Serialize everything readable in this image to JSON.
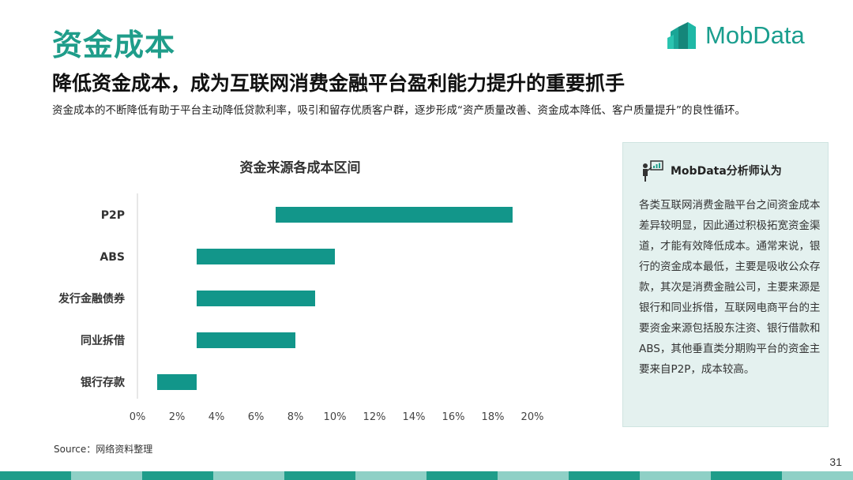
{
  "page": {
    "title": "资金成本",
    "subtitle": "降低资金成本，成为互联网消费金融平台盈利能力提升的重要抓手",
    "description": "资金成本的不断降低有助于平台主动降低贷款利率，吸引和留存优质客户群，逐步形成“资产质量改善、资金成本降低、客户质量提升”的良性循环。",
    "source": "Source：网络资料整理",
    "page_number": "31"
  },
  "logo": {
    "text": "MobData",
    "color": "#1a9e8e"
  },
  "analyst_panel": {
    "title": "MobData分析师认为",
    "icon": "presenter-chart-icon",
    "body": "各类互联网消费金融平台之间资金成本差异较明显，因此通过积极拓宽资金渠道，才能有效降低成本。通常来说，银行的资金成本最低，主要是吸收公众存款，其次是消费金融公司，主要来源是银行和同业拆借，互联网电商平台的主要资金来源包括股东注资、银行借款和ABS，其他垂直类分期购平台的资金主要来自P2P，成本较高。"
  },
  "colors": {
    "accent": "#1f9d8a",
    "bar": "#12968a",
    "panel_bg": "#e4f1ef"
  },
  "chart_data": {
    "type": "bar",
    "orientation": "horizontal",
    "title": "资金来源各成本区间",
    "categories": [
      "P2P",
      "ABS",
      "发行金融债券",
      "同业拆借",
      "银行存款"
    ],
    "ranges": [
      [
        7,
        19
      ],
      [
        3,
        10
      ],
      [
        3,
        9
      ],
      [
        3,
        8
      ],
      [
        1,
        3
      ]
    ],
    "unit": "%",
    "xlim": [
      0,
      20
    ],
    "xticks": [
      0,
      2,
      4,
      6,
      8,
      10,
      12,
      14,
      16,
      18,
      20
    ],
    "xtick_labels": [
      "0%",
      "2%",
      "4%",
      "6%",
      "8%",
      "10%",
      "12%",
      "14%",
      "16%",
      "18%",
      "20%"
    ],
    "grid": false
  }
}
